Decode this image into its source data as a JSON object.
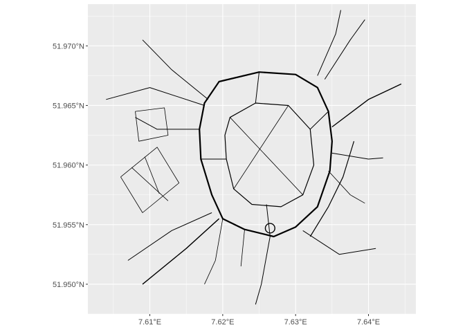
{
  "chart_data": {
    "type": "map",
    "xlim": [
      7.6015,
      7.6465
    ],
    "ylim": [
      51.9475,
      51.9735
    ],
    "grid": true,
    "panel_background": "#ebebeb",
    "grid_color": "#ffffff",
    "line_color": "#000000",
    "x_ticks": [
      {
        "value": 7.61,
        "label": "7.61°E"
      },
      {
        "value": 7.62,
        "label": "7.62°E"
      },
      {
        "value": 7.63,
        "label": "7.63°E"
      },
      {
        "value": 7.64,
        "label": "7.64°E"
      }
    ],
    "y_ticks": [
      {
        "value": 51.95,
        "label": "51.950°N"
      },
      {
        "value": 51.955,
        "label": "51.955°N"
      },
      {
        "value": 51.96,
        "label": "51.960°N"
      },
      {
        "value": 51.965,
        "label": "51.965°N"
      },
      {
        "value": 51.97,
        "label": "51.970°N"
      }
    ],
    "roads": [
      {
        "name": "ring-road",
        "width": 2.2,
        "closed": true,
        "coords": [
          [
            7.6175,
            51.9652
          ],
          [
            7.6195,
            51.967
          ],
          [
            7.625,
            51.9678
          ],
          [
            7.63,
            51.9676
          ],
          [
            7.633,
            51.9665
          ],
          [
            7.6345,
            51.9645
          ],
          [
            7.635,
            51.962
          ],
          [
            7.6347,
            51.9595
          ],
          [
            7.633,
            51.9565
          ],
          [
            7.63,
            51.9548
          ],
          [
            7.627,
            51.954
          ],
          [
            7.623,
            51.9546
          ],
          [
            7.62,
            51.9555
          ],
          [
            7.6185,
            51.9575
          ],
          [
            7.617,
            51.9605
          ],
          [
            7.6168,
            51.963
          ]
        ]
      },
      {
        "name": "inner-ring",
        "width": 1.2,
        "closed": true,
        "coords": [
          [
            7.621,
            51.964
          ],
          [
            7.6245,
            51.9652
          ],
          [
            7.629,
            51.965
          ],
          [
            7.632,
            51.963
          ],
          [
            7.6325,
            51.96
          ],
          [
            7.631,
            51.9575
          ],
          [
            7.628,
            51.9565
          ],
          [
            7.624,
            51.9567
          ],
          [
            7.6215,
            51.958
          ],
          [
            7.6205,
            51.9605
          ],
          [
            7.6203,
            51.9625
          ]
        ]
      },
      {
        "name": "road-north-east",
        "width": 1,
        "closed": false,
        "coords": [
          [
            7.634,
            51.9672
          ],
          [
            7.6375,
            51.9705
          ],
          [
            7.6395,
            51.9722
          ]
        ]
      },
      {
        "name": "road-north",
        "width": 1,
        "closed": false,
        "coords": [
          [
            7.633,
            51.9675
          ],
          [
            7.6355,
            51.971
          ],
          [
            7.6362,
            51.973
          ]
        ]
      },
      {
        "name": "road-east",
        "width": 1.4,
        "closed": false,
        "coords": [
          [
            7.635,
            51.9632
          ],
          [
            7.64,
            51.9655
          ],
          [
            7.6445,
            51.9668
          ]
        ]
      },
      {
        "name": "road-east-2",
        "width": 1,
        "closed": false,
        "coords": [
          [
            7.635,
            51.961
          ],
          [
            7.64,
            51.9605
          ],
          [
            7.642,
            51.9606
          ]
        ]
      },
      {
        "name": "road-south-east",
        "width": 1,
        "closed": false,
        "coords": [
          [
            7.631,
            51.9545
          ],
          [
            7.636,
            51.9525
          ],
          [
            7.641,
            51.953
          ]
        ]
      },
      {
        "name": "road-south",
        "width": 1,
        "closed": false,
        "coords": [
          [
            7.6265,
            51.954
          ],
          [
            7.6253,
            51.95
          ],
          [
            7.6245,
            51.9483
          ]
        ]
      },
      {
        "name": "road-south-west",
        "width": 1.4,
        "closed": false,
        "coords": [
          [
            7.6195,
            51.9555
          ],
          [
            7.615,
            51.953
          ],
          [
            7.609,
            51.95
          ]
        ]
      },
      {
        "name": "road-south-west-2",
        "width": 1,
        "closed": false,
        "coords": [
          [
            7.6185,
            51.956
          ],
          [
            7.613,
            51.9545
          ],
          [
            7.607,
            51.952
          ]
        ]
      },
      {
        "name": "road-west",
        "width": 1,
        "closed": false,
        "coords": [
          [
            7.6168,
            51.963
          ],
          [
            7.611,
            51.963
          ],
          [
            7.608,
            51.964
          ]
        ]
      },
      {
        "name": "road-north-west",
        "width": 1,
        "closed": false,
        "coords": [
          [
            7.618,
            51.9655
          ],
          [
            7.613,
            51.968
          ],
          [
            7.609,
            51.9705
          ]
        ]
      },
      {
        "name": "road-far-west",
        "width": 1,
        "closed": false,
        "coords": [
          [
            7.6175,
            51.965
          ],
          [
            7.61,
            51.9665
          ],
          [
            7.604,
            51.9655
          ]
        ]
      },
      {
        "name": "road-inner-north",
        "width": 1,
        "closed": false,
        "coords": [
          [
            7.6245,
            51.9652
          ],
          [
            7.625,
            51.9678
          ]
        ]
      },
      {
        "name": "road-inner-east",
        "width": 1,
        "closed": false,
        "coords": [
          [
            7.632,
            51.963
          ],
          [
            7.6345,
            51.9645
          ]
        ]
      },
      {
        "name": "road-inner-south",
        "width": 1,
        "closed": false,
        "coords": [
          [
            7.626,
            51.9567
          ],
          [
            7.6265,
            51.954
          ]
        ]
      },
      {
        "name": "road-inner-west",
        "width": 1,
        "closed": false,
        "coords": [
          [
            7.6205,
            51.9605
          ],
          [
            7.617,
            51.9605
          ]
        ]
      },
      {
        "name": "road-diagonal-1",
        "width": 0.8,
        "closed": false,
        "coords": [
          [
            7.6215,
            51.958
          ],
          [
            7.629,
            51.965
          ]
        ]
      },
      {
        "name": "road-diagonal-2",
        "width": 0.8,
        "closed": false,
        "coords": [
          [
            7.621,
            51.964
          ],
          [
            7.631,
            51.9575
          ]
        ]
      },
      {
        "name": "road-west-grid-1",
        "width": 0.8,
        "closed": false,
        "coords": [
          [
            7.606,
            51.959
          ],
          [
            7.611,
            51.9615
          ],
          [
            7.614,
            51.9585
          ],
          [
            7.609,
            51.956
          ],
          [
            7.606,
            51.959
          ]
        ]
      },
      {
        "name": "road-west-grid-2",
        "width": 0.8,
        "closed": false,
        "coords": [
          [
            7.6075,
            51.9598
          ],
          [
            7.6125,
            51.957
          ]
        ]
      },
      {
        "name": "road-west-grid-3",
        "width": 0.8,
        "closed": false,
        "coords": [
          [
            7.6093,
            51.9607
          ],
          [
            7.6113,
            51.9576
          ]
        ]
      },
      {
        "name": "road-north-west-block",
        "width": 0.8,
        "closed": false,
        "coords": [
          [
            7.608,
            51.9645
          ],
          [
            7.612,
            51.9648
          ],
          [
            7.6125,
            51.9625
          ],
          [
            7.6085,
            51.962
          ],
          [
            7.608,
            51.9645
          ]
        ]
      },
      {
        "name": "road-south-east-tracks",
        "width": 1.2,
        "closed": false,
        "coords": [
          [
            7.632,
            51.954
          ],
          [
            7.6345,
            51.9565
          ],
          [
            7.6365,
            51.959
          ],
          [
            7.638,
            51.962
          ]
        ]
      },
      {
        "name": "road-east-spur",
        "width": 0.8,
        "closed": false,
        "coords": [
          [
            7.6345,
            51.9595
          ],
          [
            7.6375,
            51.9575
          ],
          [
            7.6395,
            51.9568
          ]
        ]
      },
      {
        "name": "road-south-far",
        "width": 0.8,
        "closed": false,
        "coords": [
          [
            7.62,
            51.9555
          ],
          [
            7.619,
            51.952
          ],
          [
            7.6175,
            51.95
          ]
        ]
      },
      {
        "name": "road-south-mid",
        "width": 0.8,
        "closed": false,
        "coords": [
          [
            7.623,
            51.9546
          ],
          [
            7.6225,
            51.9515
          ]
        ]
      }
    ],
    "roundabout": {
      "lon": 7.6265,
      "lat": 51.9547,
      "radius_deg": 0.0004
    }
  }
}
